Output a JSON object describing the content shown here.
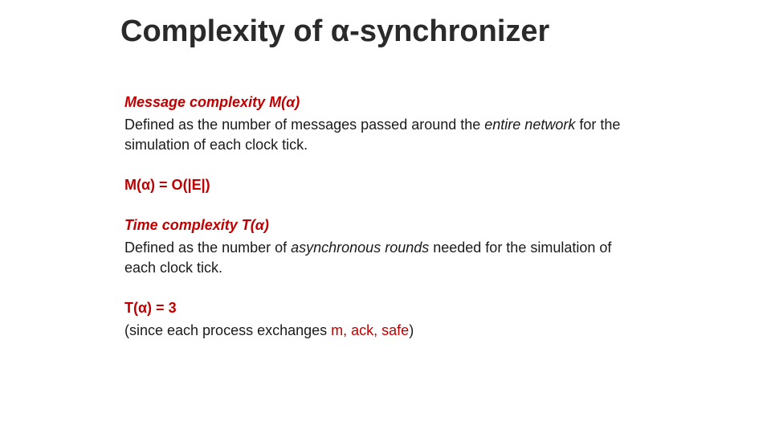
{
  "colors": {
    "title": "#2a2a2a",
    "accent": "#c00000",
    "text": "#1a1a1a",
    "background": "#ffffff"
  },
  "fontsize": {
    "title": 38,
    "body": 18
  },
  "title": "Complexity of α-synchronizer",
  "b1": {
    "head": "Message complexity M(α)",
    "l1a": "Defined as the number of messages passed around the ",
    "l1b": "entire network",
    "l1c": " for the simulation of each clock tick."
  },
  "eq1": "M(α) = O(|E|)",
  "b2": {
    "head": "Time complexity T(α)",
    "l1a": "Defined as the number of ",
    "l1b": "asynchronous rounds",
    "l1c": " needed for the simulation of each clock tick."
  },
  "eq2": "T(α) = 3",
  "eq2sub_a": "(since each process exchanges ",
  "eq2sub_b": "m, ack, safe",
  "eq2sub_c": ")"
}
